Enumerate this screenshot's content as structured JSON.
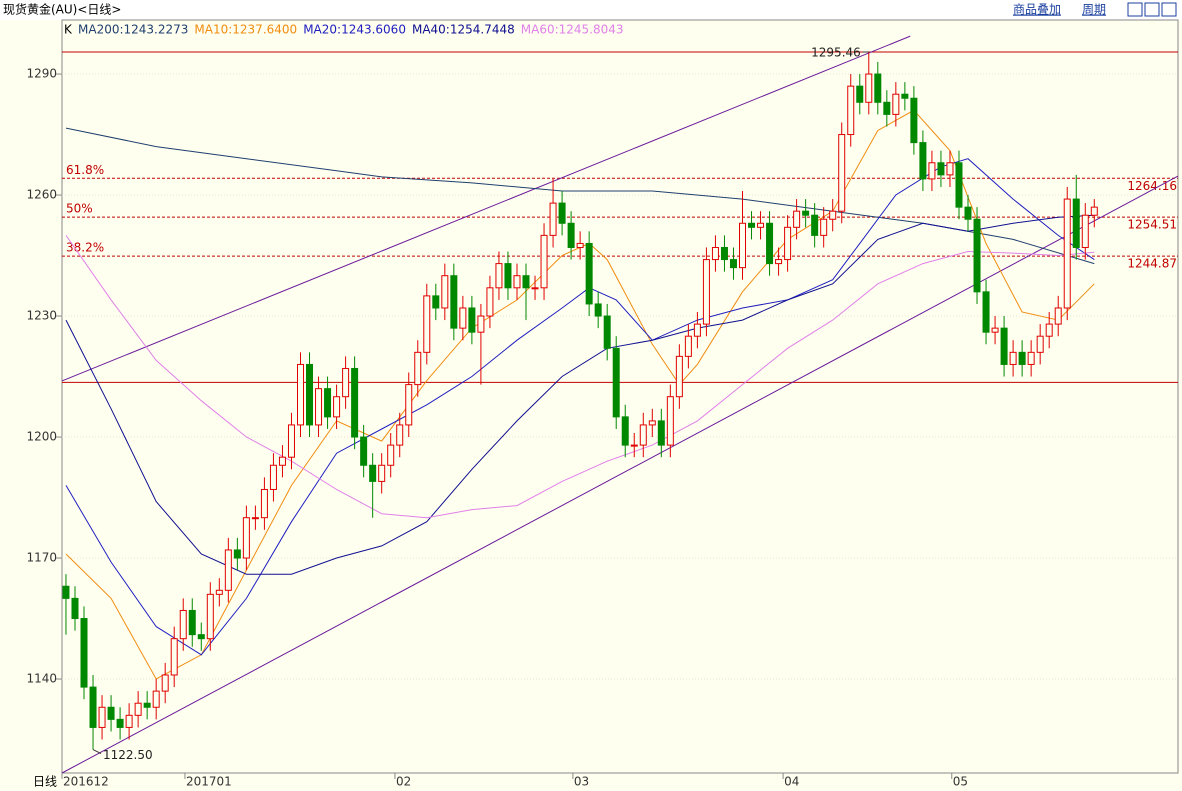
{
  "header": {
    "title": "现货黄金(AU)<日线>",
    "buttons": [
      "商品叠加",
      "周期"
    ]
  },
  "chart_data": {
    "type": "candlestick",
    "period_label": "日线",
    "legend_prefix": "K",
    "up_color": "#e00000",
    "down_color": "#008800",
    "grid": true,
    "xlim": [
      -0.44,
      123.28
    ],
    "ylim": [
      1116.7,
      1303.4
    ],
    "yticks": [
      1140,
      1170,
      1200,
      1230,
      1260,
      1290
    ],
    "xticks": [
      {
        "value": -0.44,
        "label": "201612"
      },
      {
        "value": 13.19,
        "label": "201701"
      },
      {
        "value": 36.47,
        "label": "02"
      },
      {
        "value": 56.2,
        "label": "03"
      },
      {
        "value": 79.5,
        "label": "04"
      },
      {
        "value": 98.2,
        "label": "05"
      }
    ],
    "open": [
      1163,
      1160,
      1155,
      1138,
      1128,
      1133,
      1130,
      1128,
      1131,
      1134,
      1133,
      1137,
      1141,
      1150,
      1157,
      1151,
      1150,
      1161,
      1162,
      1172,
      1170,
      1180,
      1180,
      1187,
      1193,
      1195,
      1203,
      1218,
      1203,
      1212,
      1205,
      1210,
      1217,
      1200,
      1193,
      1189,
      1193,
      1198,
      1203,
      1213,
      1221,
      1235,
      1232,
      1240,
      1227,
      1232,
      1226,
      1230,
      1237,
      1243,
      1237,
      1240,
      1237,
      1237,
      1250,
      1258,
      1253,
      1247,
      1248,
      1233,
      1230,
      1222,
      1205,
      1198,
      1198,
      1203,
      1204,
      1198,
      1210,
      1220,
      1225,
      1228,
      1244,
      1247,
      1244,
      1242,
      1253,
      1252,
      1253,
      1243,
      1244,
      1252,
      1256,
      1255,
      1250,
      1254,
      1256,
      1275,
      1287,
      1283,
      1290,
      1283,
      1280,
      1285,
      1284,
      1273,
      1264,
      1268,
      1265,
      1268,
      1257,
      1254,
      1236,
      1226,
      1227,
      1218,
      1221,
      1218,
      1221,
      1225,
      1228,
      1232,
      1259,
      1247,
      1255
    ],
    "high": [
      1166,
      1163,
      1158,
      1141,
      1136,
      1136,
      1133,
      1134,
      1137,
      1137,
      1140,
      1144,
      1153,
      1160,
      1160,
      1154,
      1164,
      1165,
      1175,
      1175,
      1183,
      1183,
      1190,
      1196,
      1198,
      1206,
      1221,
      1221,
      1215,
      1215,
      1213,
      1220,
      1220,
      1203,
      1196,
      1196,
      1201,
      1206,
      1216,
      1224,
      1238,
      1238,
      1243,
      1243,
      1235,
      1235,
      1233,
      1240,
      1246,
      1246,
      1243,
      1243,
      1240,
      1253,
      1264,
      1261,
      1256,
      1251,
      1251,
      1236,
      1233,
      1225,
      1208,
      1201,
      1206,
      1207,
      1207,
      1213,
      1223,
      1228,
      1231,
      1247,
      1250,
      1250,
      1247,
      1261,
      1256,
      1256,
      1256,
      1247,
      1255,
      1259,
      1259,
      1258,
      1257,
      1259,
      1278,
      1290,
      1290,
      1295.46,
      1293,
      1286,
      1288,
      1288,
      1287,
      1276,
      1271,
      1271,
      1271,
      1271,
      1260,
      1257,
      1239,
      1230,
      1230,
      1224,
      1224,
      1224,
      1228,
      1231,
      1235,
      1262,
      1265,
      1258,
      1259
    ],
    "low": [
      1151,
      1152,
      1135,
      1122.5,
      1125,
      1127,
      1125,
      1125,
      1128,
      1130,
      1130,
      1134,
      1138,
      1147,
      1148,
      1147,
      1147,
      1158,
      1159,
      1167,
      1167,
      1177,
      1177,
      1184,
      1190,
      1192,
      1200,
      1200,
      1200,
      1202,
      1202,
      1207,
      1197,
      1190,
      1180,
      1186,
      1190,
      1195,
      1200,
      1210,
      1218,
      1229,
      1229,
      1224,
      1224,
      1223,
      1213,
      1227,
      1234,
      1234,
      1234,
      1229,
      1234,
      1234,
      1247,
      1250,
      1244,
      1244,
      1230,
      1227,
      1219,
      1202,
      1195,
      1195,
      1195,
      1200,
      1195,
      1195,
      1207,
      1217,
      1222,
      1225,
      1241,
      1241,
      1239,
      1239,
      1249,
      1249,
      1240,
      1240,
      1241,
      1249,
      1252,
      1247,
      1247,
      1251,
      1253,
      1272,
      1280,
      1280,
      1280,
      1277,
      1277,
      1281,
      1270,
      1261,
      1261,
      1262,
      1262,
      1254,
      1251,
      1233,
      1223,
      1223,
      1215,
      1215,
      1215,
      1215,
      1218,
      1222,
      1225,
      1229,
      1244,
      1244,
      1252
    ],
    "close": [
      1160,
      1155,
      1138,
      1128,
      1133,
      1130,
      1128,
      1131,
      1134,
      1133,
      1137,
      1141,
      1150,
      1157,
      1151,
      1150,
      1161,
      1162,
      1172,
      1170,
      1180,
      1180,
      1187,
      1193,
      1195,
      1203,
      1218,
      1203,
      1212,
      1205,
      1210,
      1217,
      1200,
      1193,
      1189,
      1193,
      1198,
      1203,
      1213,
      1221,
      1235,
      1232,
      1240,
      1227,
      1232,
      1226,
      1230,
      1237,
      1243,
      1237,
      1240,
      1237,
      1237,
      1250,
      1258,
      1253,
      1247,
      1248,
      1233,
      1230,
      1222,
      1205,
      1198,
      1198,
      1203,
      1204,
      1198,
      1210,
      1220,
      1225,
      1228,
      1244,
      1247,
      1244,
      1242,
      1253,
      1252,
      1253,
      1243,
      1244,
      1252,
      1256,
      1255,
      1250,
      1254,
      1256,
      1275,
      1287,
      1283,
      1290,
      1283,
      1280,
      1285,
      1284,
      1273,
      1264,
      1268,
      1265,
      1268,
      1257,
      1254,
      1236,
      1226,
      1227,
      1218,
      1221,
      1218,
      1221,
      1225,
      1228,
      1232,
      1259,
      1247,
      1255,
      1257
    ],
    "series": [
      {
        "name": "MA200",
        "legend": "MA200:1243.2273",
        "color": "#1f3f6e",
        "x": [
          0,
          10,
          20,
          30,
          35,
          45,
          55,
          65,
          75,
          85,
          95,
          105,
          114
        ],
        "values": [
          1276.6,
          1272,
          1269,
          1266,
          1264.5,
          1263,
          1261,
          1261,
          1259,
          1256,
          1253,
          1249,
          1243
        ]
      },
      {
        "name": "MA10",
        "legend": "MA10:1237.6400",
        "color": "#f08c10",
        "x": [
          0,
          5,
          10,
          15,
          20,
          25,
          30,
          35,
          40,
          45,
          50,
          55,
          58,
          60,
          65,
          68,
          70,
          75,
          80,
          85,
          90,
          94,
          98,
          102,
          106,
          110,
          114
        ],
        "values": [
          1171,
          1160,
          1140,
          1146,
          1167,
          1188,
          1204,
          1199,
          1214,
          1227,
          1234,
          1245,
          1248,
          1244,
          1223,
          1213,
          1218,
          1236,
          1249,
          1256,
          1276,
          1281,
          1271,
          1248,
          1231,
          1229,
          1238
        ]
      },
      {
        "name": "MA20",
        "legend": "MA20:1243.6060",
        "color": "#2020c0",
        "x": [
          0,
          5,
          10,
          15,
          20,
          25,
          30,
          35,
          40,
          45,
          50,
          55,
          58,
          61,
          65,
          70,
          75,
          80,
          85,
          88,
          92,
          97,
          100,
          105,
          110,
          114
        ],
        "values": [
          1188,
          1169,
          1153,
          1146,
          1160,
          1179,
          1196,
          1202,
          1208,
          1215,
          1224,
          1232,
          1237,
          1234,
          1224,
          1229,
          1232,
          1234,
          1239,
          1248,
          1260,
          1267,
          1269,
          1259,
          1250,
          1244
        ]
      },
      {
        "name": "MA40",
        "legend": "MA40:1254.7448",
        "color": "#101090",
        "x": [
          0,
          5,
          10,
          15,
          20,
          25,
          30,
          35,
          40,
          45,
          50,
          55,
          60,
          65,
          70,
          75,
          80,
          85,
          90,
          95,
          100,
          105,
          110,
          114
        ],
        "values": [
          1229,
          1207,
          1184,
          1171,
          1166,
          1166,
          1170,
          1173,
          1179,
          1192,
          1204,
          1215,
          1222,
          1224,
          1227,
          1229,
          1234,
          1238,
          1249,
          1253,
          1251,
          1253,
          1254.5,
          1255
        ]
      },
      {
        "name": "MA60",
        "legend": "MA60:1245.8043",
        "color": "#e080e8",
        "x": [
          0,
          5,
          10,
          15,
          20,
          25,
          30,
          35,
          40,
          45,
          50,
          55,
          60,
          65,
          70,
          75,
          80,
          85,
          90,
          95,
          100,
          105,
          110,
          114
        ],
        "values": [
          1250,
          1234,
          1219,
          1209,
          1200,
          1194,
          1187,
          1181,
          1180,
          1182,
          1183,
          1189,
          1194,
          1198,
          1204,
          1213,
          1222,
          1229,
          1238,
          1243,
          1246,
          1245.6,
          1245,
          1245.8
        ]
      }
    ],
    "range_lines": [
      1295.46,
      1213.56
    ],
    "levels": [
      {
        "label": "61.8%",
        "value": 1264.16
      },
      {
        "label": "50%",
        "value": 1254.51
      },
      {
        "label": "38.2%",
        "value": 1244.87
      }
    ],
    "trendlines": [
      {
        "x": [
          -0.44,
          93.6
        ],
        "values": [
          1213.9,
          1299.4
        ]
      },
      {
        "x": [
          -0.44,
          123.28
        ],
        "values": [
          1116.7,
          1264.7
        ]
      }
    ],
    "annotations": [
      {
        "x": 89,
        "value": 1295.46
      },
      {
        "x": 3,
        "value": 1122.5,
        "label": "1122.50"
      }
    ]
  }
}
